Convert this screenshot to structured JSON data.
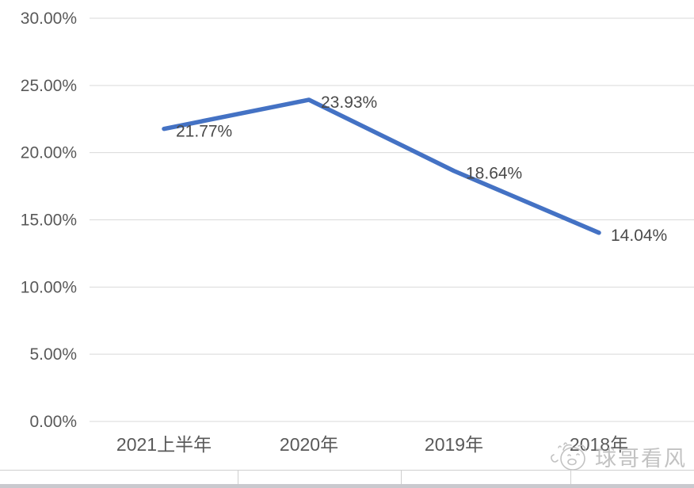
{
  "chart_data": {
    "type": "line",
    "title": "",
    "categories": [
      "2021上半年",
      "2020年",
      "2019年",
      "2018年"
    ],
    "series": [
      {
        "name": "ratio",
        "values": [
          21.77,
          23.93,
          18.64,
          14.04
        ],
        "value_labels": [
          "21.77%",
          "23.93%",
          "18.64%",
          "14.04%"
        ]
      }
    ],
    "yticks": [
      {
        "value": 30,
        "label": "30.00%"
      },
      {
        "value": 25,
        "label": "25.00%"
      },
      {
        "value": 20,
        "label": "20.00%"
      },
      {
        "value": 15,
        "label": "15.00%"
      },
      {
        "value": 10,
        "label": "10.00%"
      },
      {
        "value": 5,
        "label": "5.00%"
      },
      {
        "value": 0,
        "label": "0.00%"
      }
    ],
    "ylim": [
      0,
      30
    ],
    "grid": true,
    "legend": "none",
    "xlabel": "",
    "ylabel": ""
  },
  "colors": {
    "line": "#4472C4",
    "gridline": "#d9d9d9",
    "tick_text": "#595959",
    "data_label_text": "#4a4a4a",
    "watermark": "#bdbdbd"
  },
  "watermark": {
    "text": "球哥看风"
  }
}
